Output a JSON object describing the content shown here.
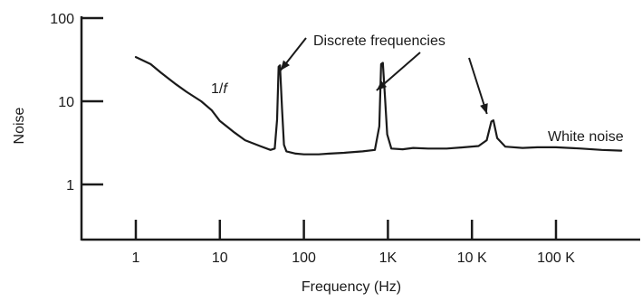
{
  "chart_data": {
    "type": "line",
    "xlabel": "Frequency (Hz)",
    "ylabel": "Noise",
    "x_scale": "log",
    "y_scale": "log",
    "xlim": [
      0.4,
      600000
    ],
    "ylim": [
      0.4,
      100
    ],
    "x_ticks": [
      {
        "value": 1,
        "label": "1"
      },
      {
        "value": 10,
        "label": "10"
      },
      {
        "value": 100,
        "label": "100"
      },
      {
        "value": 1000,
        "label": "1K"
      },
      {
        "value": 10000,
        "label": "10 K"
      },
      {
        "value": 100000,
        "label": "100 K"
      }
    ],
    "y_ticks": [
      {
        "value": 1,
        "label": "1"
      },
      {
        "value": 10,
        "label": "10"
      },
      {
        "value": 100,
        "label": "100"
      }
    ],
    "grid": false,
    "series": [
      {
        "name": "",
        "points": [
          [
            1,
            34
          ],
          [
            1.5,
            28
          ],
          [
            2,
            22
          ],
          [
            3,
            16
          ],
          [
            4,
            13
          ],
          [
            6,
            10
          ],
          [
            8,
            7.8
          ],
          [
            10,
            5.8
          ],
          [
            15,
            4.2
          ],
          [
            20,
            3.4
          ],
          [
            30,
            2.9
          ],
          [
            40,
            2.6
          ],
          [
            45,
            2.7
          ],
          [
            48,
            6
          ],
          [
            50,
            26
          ],
          [
            52,
            27
          ],
          [
            55,
            8
          ],
          [
            58,
            3
          ],
          [
            62,
            2.5
          ],
          [
            80,
            2.35
          ],
          [
            100,
            2.3
          ],
          [
            150,
            2.3
          ],
          [
            200,
            2.35
          ],
          [
            300,
            2.4
          ],
          [
            500,
            2.5
          ],
          [
            700,
            2.6
          ],
          [
            790,
            5
          ],
          [
            830,
            28
          ],
          [
            870,
            29
          ],
          [
            920,
            12
          ],
          [
            980,
            4
          ],
          [
            1100,
            2.7
          ],
          [
            1500,
            2.65
          ],
          [
            2000,
            2.75
          ],
          [
            3000,
            2.7
          ],
          [
            5000,
            2.7
          ],
          [
            8000,
            2.8
          ],
          [
            12000,
            2.9
          ],
          [
            15000,
            3.4
          ],
          [
            17000,
            5.7
          ],
          [
            18000,
            5.9
          ],
          [
            20000,
            3.6
          ],
          [
            25000,
            2.85
          ],
          [
            40000,
            2.75
          ],
          [
            60000,
            2.8
          ],
          [
            100000,
            2.8
          ],
          [
            200000,
            2.7
          ],
          [
            350000,
            2.6
          ],
          [
            600000,
            2.55
          ]
        ]
      }
    ],
    "annotations": [
      {
        "text": "Discrete frequencies",
        "arrows_to_x": [
          50,
          850,
          17500
        ]
      },
      {
        "text_prefix": "1/",
        "text_italic": "f",
        "x": 25,
        "y": 20
      },
      {
        "text": "White noise",
        "x": 200000,
        "y": 3.4
      }
    ]
  }
}
